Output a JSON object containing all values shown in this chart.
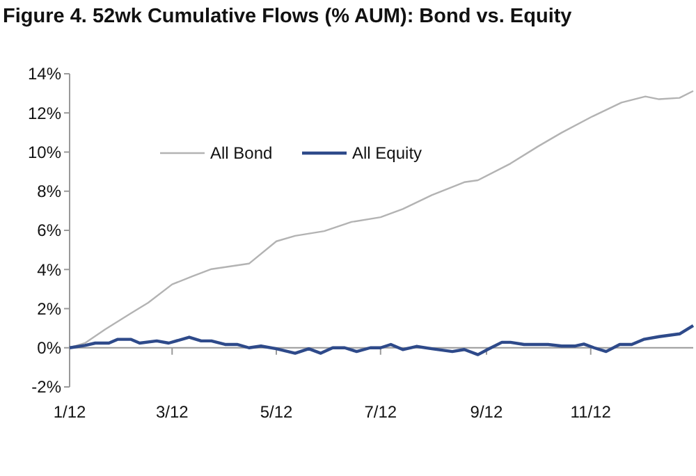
{
  "chart_data": {
    "type": "line",
    "title": "Figure 4. 52wk Cumulative Flows (% AUM): Bond vs. Equity",
    "xlim": [
      "2012-01-01",
      "2012-12-31"
    ],
    "xticks": [
      {
        "value": "2012-01-01",
        "label": "1/12"
      },
      {
        "value": "2012-03-01",
        "label": "3/12"
      },
      {
        "value": "2012-05-01",
        "label": "5/12"
      },
      {
        "value": "2012-07-01",
        "label": "7/12"
      },
      {
        "value": "2012-09-01",
        "label": "9/12"
      },
      {
        "value": "2012-11-01",
        "label": "11/12"
      }
    ],
    "ylim": [
      -2,
      14
    ],
    "yticks": [
      {
        "value": -2,
        "label": "-2%"
      },
      {
        "value": 0,
        "label": "0%"
      },
      {
        "value": 2,
        "label": "2%"
      },
      {
        "value": 4,
        "label": "4%"
      },
      {
        "value": 6,
        "label": "6%"
      },
      {
        "value": 8,
        "label": "8%"
      },
      {
        "value": 10,
        "label": "10%"
      },
      {
        "value": 12,
        "label": "12%"
      },
      {
        "value": 14,
        "label": "14%"
      }
    ],
    "legend": "top left",
    "marker": "none",
    "line_style": "solid",
    "series": [
      {
        "name": "All Bond",
        "color": "#b3b3b3",
        "x": [
          "2012-01-01",
          "2012-01-10",
          "2012-01-22",
          "2012-02-06",
          "2012-02-16",
          "2012-03-01",
          "2012-03-13",
          "2012-03-24",
          "2012-04-15",
          "2012-05-01",
          "2012-05-12",
          "2012-05-29",
          "2012-06-14",
          "2012-07-01",
          "2012-07-14",
          "2012-07-31",
          "2012-08-19",
          "2012-08-27",
          "2012-09-15",
          "2012-10-01",
          "2012-10-15",
          "2012-11-02",
          "2012-11-19",
          "2012-12-03",
          "2012-12-11",
          "2012-12-23",
          "2012-12-31"
        ],
        "values": [
          0,
          0.24,
          0.95,
          1.77,
          2.3,
          3.24,
          3.66,
          4.02,
          4.3,
          5.44,
          5.72,
          5.96,
          6.43,
          6.67,
          7.09,
          7.8,
          8.46,
          8.56,
          9.41,
          10.28,
          10.99,
          11.82,
          12.53,
          12.84,
          12.7,
          12.77,
          13.12
        ]
      },
      {
        "name": "All Equity",
        "color": "#2e4a8a",
        "x": [
          "2012-01-01",
          "2012-01-10",
          "2012-01-16",
          "2012-01-24",
          "2012-01-29",
          "2012-02-06",
          "2012-02-11",
          "2012-02-21",
          "2012-02-28",
          "2012-03-11",
          "2012-03-18",
          "2012-03-24",
          "2012-04-01",
          "2012-04-08",
          "2012-04-15",
          "2012-04-22",
          "2012-05-01",
          "2012-05-12",
          "2012-05-20",
          "2012-05-27",
          "2012-06-03",
          "2012-06-10",
          "2012-06-17",
          "2012-06-25",
          "2012-07-01",
          "2012-07-07",
          "2012-07-14",
          "2012-07-22",
          "2012-07-31",
          "2012-08-12",
          "2012-08-19",
          "2012-08-27",
          "2012-09-02",
          "2012-09-10",
          "2012-09-15",
          "2012-09-23",
          "2012-10-07",
          "2012-10-15",
          "2012-10-23",
          "2012-10-28",
          "2012-11-03",
          "2012-11-10",
          "2012-11-18",
          "2012-11-25",
          "2012-12-02",
          "2012-12-11",
          "2012-12-23",
          "2012-12-31"
        ],
        "values": [
          0,
          0.12,
          0.24,
          0.24,
          0.43,
          0.43,
          0.24,
          0.35,
          0.24,
          0.54,
          0.35,
          0.35,
          0.17,
          0.17,
          0,
          0.09,
          -0.05,
          -0.28,
          -0.05,
          -0.28,
          0,
          0,
          -0.19,
          0,
          0,
          0.17,
          -0.09,
          0.07,
          -0.05,
          -0.19,
          -0.09,
          -0.35,
          -0.07,
          0.28,
          0.28,
          0.17,
          0.17,
          0.09,
          0.09,
          0.19,
          0,
          -0.19,
          0.17,
          0.17,
          0.43,
          0.57,
          0.71,
          1.13
        ]
      }
    ]
  }
}
